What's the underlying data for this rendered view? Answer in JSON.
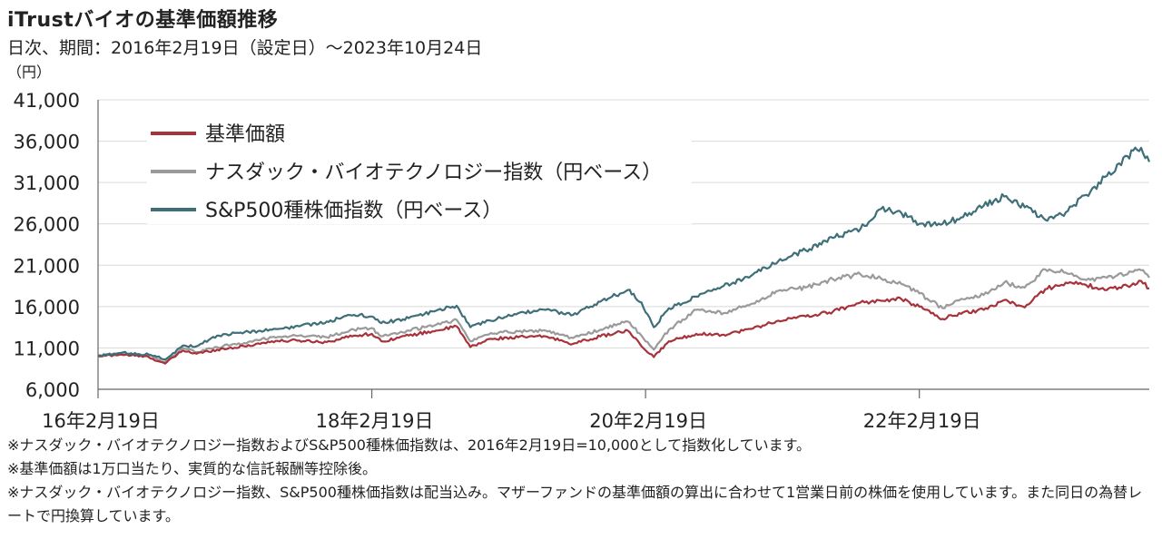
{
  "header": {
    "title": "iTrustバイオの基準価額推移",
    "subtitle": "日次、期間：2016年2月19日（設定日）～2023年10月24日",
    "unit": "（円）"
  },
  "notes": [
    "※ナスダック・バイオテクノロジー指数およびS&P500種株価指数は、2016年2月19日=10,000として指数化しています。",
    "※基準価額は1万口当たり、実質的な信託報酬等控除後。",
    "※ナスダック・バイオテクノロジー指数、S&P500種株価指数は配当込み。マザーファンドの基準価額の算出に合わせて1営業日前の株価を使用しています。また同日の為替レートで円換算しています。"
  ],
  "colors": {
    "nav": "#a8323a",
    "nasdaq_bio": "#9a9a9a",
    "sp500": "#3e6f78"
  },
  "chart_data": {
    "type": "line",
    "title": "iTrustバイオの基準価額推移",
    "ylabel": "（円）",
    "ylim": [
      6000,
      41000
    ],
    "yticks": [
      6000,
      11000,
      16000,
      21000,
      26000,
      31000,
      36000,
      41000
    ],
    "ytick_labels": [
      "6,000",
      "11,000",
      "16,000",
      "21,000",
      "26,000",
      "31,000",
      "36,000",
      "41,000"
    ],
    "xlim": [
      2016.13,
      2023.81
    ],
    "xticks": [
      2016.13,
      2018.13,
      2020.13,
      2022.13
    ],
    "xtick_labels": [
      "16年2月19日",
      "18年2月19日",
      "20年2月19日",
      "22年2月19日"
    ],
    "grid": true,
    "legend_position": "top-left",
    "series": [
      {
        "name": "基準価額",
        "color": "#a8323a",
        "x": [
          2016.13,
          2016.3,
          2016.5,
          2016.62,
          2016.75,
          2016.85,
          2017.0,
          2017.2,
          2017.4,
          2017.6,
          2017.8,
          2018.0,
          2018.13,
          2018.2,
          2018.4,
          2018.6,
          2018.75,
          2018.85,
          2019.0,
          2019.2,
          2019.4,
          2019.6,
          2019.8,
          2020.0,
          2020.1,
          2020.19,
          2020.3,
          2020.5,
          2020.7,
          2020.9,
          2021.1,
          2021.3,
          2021.5,
          2021.7,
          2021.85,
          2022.0,
          2022.13,
          2022.3,
          2022.45,
          2022.6,
          2022.75,
          2022.9,
          2023.05,
          2023.2,
          2023.35,
          2023.5,
          2023.65,
          2023.75,
          2023.81
        ],
        "y": [
          10000,
          10200,
          9900,
          9100,
          10700,
          10300,
          10800,
          11200,
          11800,
          11900,
          11700,
          12500,
          12700,
          11800,
          12500,
          13100,
          13600,
          11100,
          12100,
          12300,
          12400,
          11500,
          12400,
          13100,
          11200,
          9900,
          11800,
          12700,
          12600,
          13300,
          14300,
          14800,
          15400,
          16500,
          16700,
          16900,
          16000,
          14500,
          15300,
          15600,
          16800,
          15900,
          18100,
          18900,
          18600,
          18000,
          18500,
          19100,
          18200
        ]
      },
      {
        "name": "ナスダック・バイオテクノロジー指数（円ベース）",
        "color": "#9a9a9a",
        "x": [
          2016.13,
          2016.3,
          2016.5,
          2016.62,
          2016.75,
          2016.85,
          2017.0,
          2017.2,
          2017.4,
          2017.6,
          2017.8,
          2018.0,
          2018.13,
          2018.2,
          2018.4,
          2018.6,
          2018.75,
          2018.85,
          2019.0,
          2019.2,
          2019.4,
          2019.6,
          2019.8,
          2020.0,
          2020.1,
          2020.19,
          2020.3,
          2020.5,
          2020.7,
          2020.9,
          2021.1,
          2021.3,
          2021.5,
          2021.7,
          2021.85,
          2022.0,
          2022.13,
          2022.3,
          2022.45,
          2022.6,
          2022.75,
          2022.9,
          2023.05,
          2023.2,
          2023.35,
          2023.5,
          2023.65,
          2023.75,
          2023.81
        ],
        "y": [
          10000,
          10300,
          10100,
          9300,
          11000,
          10500,
          11100,
          11600,
          12300,
          12500,
          12300,
          13200,
          13400,
          12400,
          13100,
          13800,
          14400,
          11800,
          12800,
          13000,
          13100,
          12200,
          13200,
          14200,
          12500,
          10800,
          13200,
          15600,
          15200,
          16300,
          17900,
          18300,
          19300,
          19900,
          19400,
          18700,
          17600,
          15800,
          16900,
          17400,
          18900,
          18300,
          20500,
          20100,
          19200,
          19500,
          19900,
          20400,
          19500
        ]
      },
      {
        "name": "S&P500種株価指数（円ベース）",
        "color": "#3e6f78",
        "x": [
          2016.13,
          2016.3,
          2016.5,
          2016.62,
          2016.75,
          2016.85,
          2017.0,
          2017.2,
          2017.4,
          2017.6,
          2017.8,
          2018.0,
          2018.13,
          2018.2,
          2018.4,
          2018.6,
          2018.75,
          2018.85,
          2019.0,
          2019.2,
          2019.4,
          2019.6,
          2019.8,
          2020.0,
          2020.1,
          2020.19,
          2020.3,
          2020.5,
          2020.7,
          2020.9,
          2021.1,
          2021.3,
          2021.5,
          2021.7,
          2021.85,
          2022.0,
          2022.13,
          2022.3,
          2022.45,
          2022.6,
          2022.75,
          2022.9,
          2023.05,
          2023.2,
          2023.35,
          2023.5,
          2023.65,
          2023.75,
          2023.81
        ],
        "y": [
          10000,
          10400,
          10200,
          9600,
          11300,
          11200,
          12500,
          12900,
          13200,
          13600,
          14200,
          15000,
          14800,
          14000,
          14600,
          15500,
          16100,
          13500,
          14300,
          15200,
          15600,
          15000,
          16600,
          18000,
          16500,
          13500,
          15800,
          17200,
          18500,
          19700,
          21500,
          22800,
          24300,
          25400,
          27800,
          27300,
          26000,
          26000,
          26800,
          28200,
          29300,
          28000,
          26500,
          27400,
          29500,
          31800,
          34200,
          35200,
          33500
        ]
      }
    ]
  }
}
